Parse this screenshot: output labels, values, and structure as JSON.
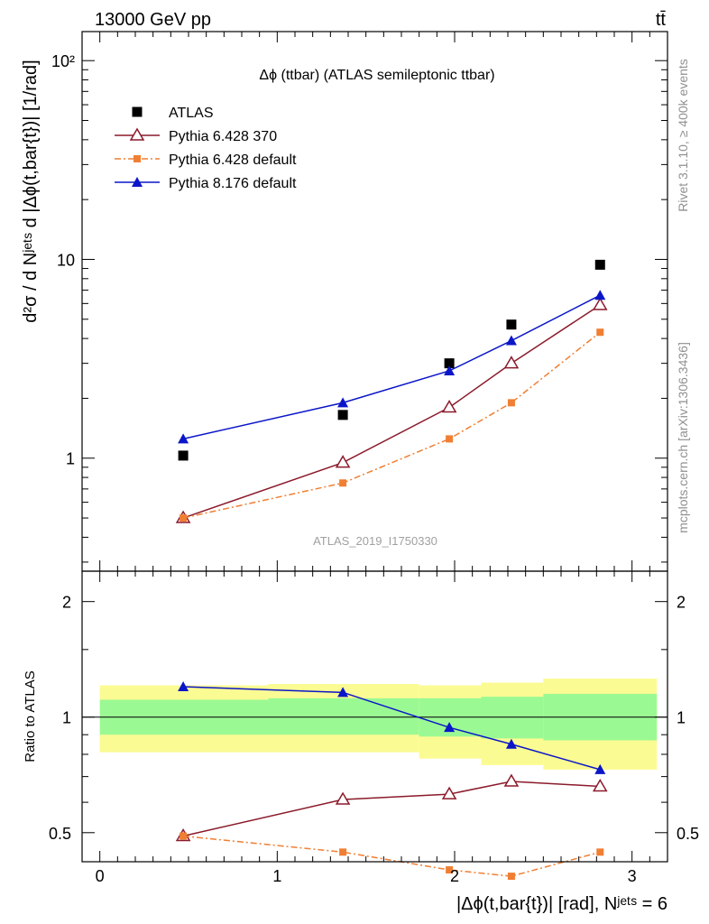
{
  "header": {
    "energy_label": "13000 GeV pp",
    "process_label": "tt̄"
  },
  "side_labels": {
    "rivet": "Rivet 3.1.10, ≥ 400k events",
    "mcplots": "mcplots.cern.ch [arXiv:1306.3436]"
  },
  "chart_data": [
    {
      "type": "scatter",
      "panel": "main",
      "title": "Δϕ (ttbar) (ATLAS semileptonic ttbar)",
      "analysis_label": "ATLAS_2019_I1750330",
      "ylabel": "d²σ / d Nʲᵉᵗˢ d |Δϕ(t,bar{t})| [1/rad]",
      "yscale": "log",
      "xlim": [
        -0.1,
        3.2
      ],
      "ylim": [
        0.27,
        140
      ],
      "y_tick_labels": [
        "1",
        "10",
        "10²"
      ],
      "legend_position": "top-left",
      "x": [
        0.47,
        1.37,
        1.97,
        2.32,
        2.82
      ],
      "series": [
        {
          "name": "ATLAS",
          "marker": "square",
          "color": "#000000",
          "line": "none",
          "values": [
            1.03,
            1.65,
            3.0,
            4.7,
            9.4
          ]
        },
        {
          "name": "Pythia 6.428 370",
          "marker": "open-triangle",
          "color": "#8b1a2b",
          "line": "solid",
          "values": [
            0.5,
            0.95,
            1.8,
            3.0,
            5.9
          ]
        },
        {
          "name": "Pythia 6.428 default",
          "marker": "small-square",
          "color": "#f07f33",
          "line": "dashdot",
          "values": [
            0.5,
            0.75,
            1.25,
            1.9,
            4.3
          ]
        },
        {
          "name": "Pythia 8.176 default",
          "marker": "filled-triangle",
          "color": "#0b16c8",
          "line": "solid",
          "values": [
            1.25,
            1.9,
            2.75,
            3.9,
            6.6
          ]
        }
      ]
    },
    {
      "type": "scatter",
      "panel": "ratio",
      "xlabel": "|Δϕ(t,bar{t})| [rad], Nʲᵉᵗˢ = 6",
      "ylabel": "Ratio to ATLAS",
      "yscale": "log",
      "xlim": [
        -0.1,
        3.2
      ],
      "ylim": [
        0.42,
        2.4
      ],
      "x_tick_labels": [
        "0",
        "1",
        "2",
        "3"
      ],
      "y_tick_labels": [
        "0.5",
        "1",
        "2"
      ],
      "uncertainty_bands": {
        "bin_edges": [
          0,
          0.95,
          1.8,
          2.15,
          2.5,
          3.14
        ],
        "outer": [
          [
            0.81,
            1.21
          ],
          [
            0.81,
            1.22
          ],
          [
            0.78,
            1.21
          ],
          [
            0.75,
            1.23
          ],
          [
            0.73,
            1.26
          ]
        ],
        "inner": [
          [
            0.9,
            1.11
          ],
          [
            0.9,
            1.12
          ],
          [
            0.89,
            1.12
          ],
          [
            0.88,
            1.13
          ],
          [
            0.87,
            1.15
          ]
        ],
        "outer_color": "#fbfb93",
        "inner_color": "#9bf993"
      },
      "x": [
        0.47,
        1.37,
        1.97,
        2.32,
        2.82
      ],
      "series": [
        {
          "name": "Pythia 6.428 370",
          "marker": "open-triangle",
          "color": "#8b1a2b",
          "line": "solid",
          "values": [
            0.49,
            0.61,
            0.63,
            0.68,
            0.66
          ]
        },
        {
          "name": "Pythia 6.428 default",
          "marker": "small-square",
          "color": "#f07f33",
          "line": "dashdot",
          "values": [
            0.49,
            0.445,
            0.4,
            0.385,
            0.445
          ]
        },
        {
          "name": "Pythia 8.176 default",
          "marker": "filled-triangle",
          "color": "#0b16c8",
          "line": "solid",
          "values": [
            1.2,
            1.16,
            0.94,
            0.85,
            0.73
          ]
        }
      ]
    }
  ]
}
